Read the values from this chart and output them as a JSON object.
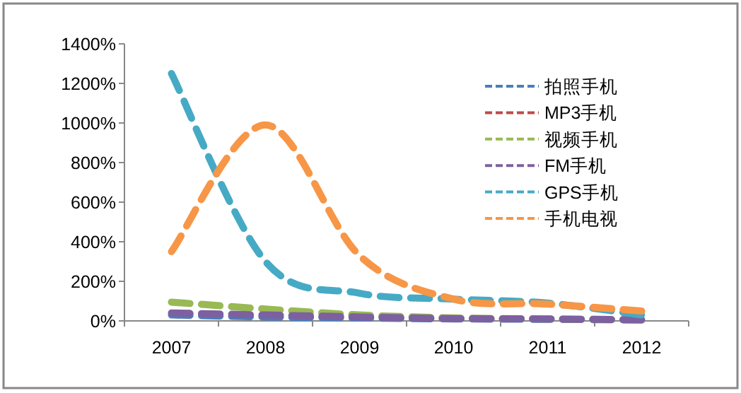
{
  "chart_data": {
    "type": "line",
    "categories": [
      "2007",
      "2008",
      "2009",
      "2010",
      "2011",
      "2012"
    ],
    "series": [
      {
        "name": "拍照手机",
        "color": "#4a7ebb",
        "values": [
          30,
          20,
          15,
          10,
          8,
          5
        ]
      },
      {
        "name": "MP3手机",
        "color": "#be4b48",
        "values": [
          null,
          null,
          null,
          null,
          null,
          null
        ]
      },
      {
        "name": "视频手机",
        "color": "#98b954",
        "values": [
          95,
          60,
          30,
          15,
          10,
          5
        ]
      },
      {
        "name": "FM手机",
        "color": "#7d60a0",
        "values": [
          40,
          30,
          20,
          12,
          10,
          5
        ]
      },
      {
        "name": "GPS手机",
        "color": "#46aac5",
        "values": [
          1250,
          300,
          140,
          110,
          90,
          30
        ]
      },
      {
        "name": "手机电视",
        "color": "#f79646",
        "values": [
          350,
          990,
          330,
          110,
          85,
          50
        ]
      }
    ],
    "ylim": [
      0,
      1400
    ],
    "yticks": [
      {
        "value": 0,
        "label": "0%"
      },
      {
        "value": 200,
        "label": "200%"
      },
      {
        "value": 400,
        "label": "400%"
      },
      {
        "value": 600,
        "label": "600%"
      },
      {
        "value": 800,
        "label": "800%"
      },
      {
        "value": 1000,
        "label": "1000%"
      },
      {
        "value": 1200,
        "label": "1200%"
      },
      {
        "value": 1400,
        "label": "1400%"
      }
    ],
    "legend": "right",
    "line_style": "dashed",
    "grid": false
  }
}
